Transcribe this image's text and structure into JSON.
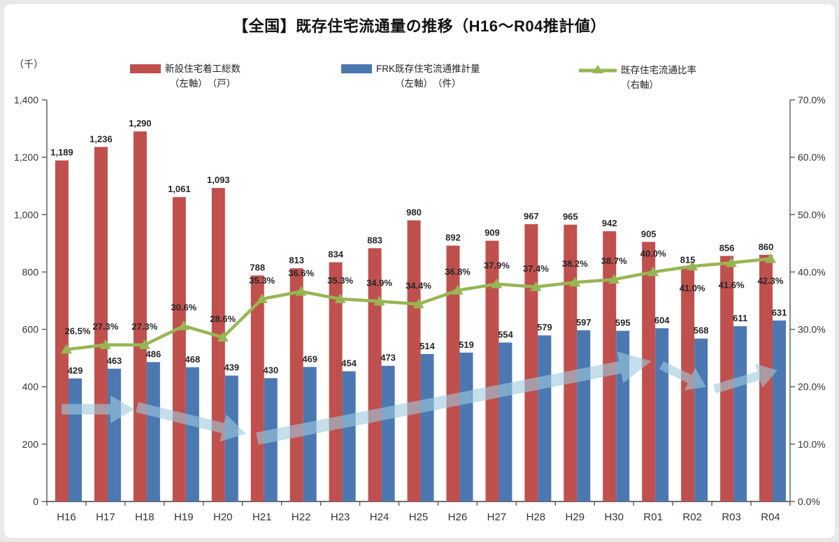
{
  "title": "【全国】既存住宅流通量の推移（H16～R04推計値）",
  "left_axis_unit": "（千）",
  "legend": [
    {
      "label": "新設住宅着工総数",
      "sub": "（左軸）　（戸）",
      "color": "#C0504D",
      "kind": "bar"
    },
    {
      "label": "FRK既存住宅流通推計量",
      "sub": "（左軸）　（件）",
      "color": "#4B78B1",
      "kind": "bar"
    },
    {
      "label": "既存住宅流通比率",
      "sub": "（右軸）",
      "color": "#97B653",
      "kind": "line"
    }
  ],
  "chart_data": {
    "type": "combo (clustered bars + line)",
    "title": "【全国】既存住宅流通量の推移（H16～R04推計値）",
    "categories": [
      "H16",
      "H17",
      "H18",
      "H19",
      "H20",
      "H21",
      "H22",
      "H23",
      "H24",
      "H25",
      "H26",
      "H27",
      "H28",
      "H29",
      "H30",
      "R01",
      "R02",
      "R03",
      "R04"
    ],
    "series": [
      {
        "name": "新設住宅着工総数（左軸）（戸）",
        "type": "bar",
        "axis": "left",
        "color": "#C0504D",
        "values": [
          1189,
          1236,
          1290,
          1061,
          1093,
          788,
          813,
          834,
          883,
          980,
          892,
          909,
          967,
          965,
          942,
          905,
          815,
          856,
          860
        ]
      },
      {
        "name": "FRK既存住宅流通推計量（左軸）（件）",
        "type": "bar",
        "axis": "left",
        "color": "#4B78B1",
        "values": [
          429,
          463,
          486,
          468,
          439,
          430,
          469,
          454,
          473,
          514,
          519,
          554,
          579,
          597,
          595,
          604,
          568,
          611,
          631
        ]
      },
      {
        "name": "既存住宅流通比率（右軸）",
        "type": "line",
        "axis": "right",
        "color": "#97B653",
        "values": [
          26.5,
          27.3,
          27.3,
          30.6,
          28.6,
          35.3,
          36.6,
          35.3,
          34.9,
          34.4,
          36.8,
          37.9,
          37.4,
          38.2,
          38.7,
          40.0,
          41.0,
          41.6,
          42.3
        ],
        "value_labels": [
          "26.5%",
          "27.3%",
          "27.3%",
          "30.6%",
          "28.6%",
          "35.3%",
          "36.6%",
          "35.3%",
          "34.9%",
          "34.4%",
          "36.8%",
          "37.9%",
          "37.4%",
          "38.2%",
          "38.7%",
          "40.0%",
          "41.0%",
          "41.6%",
          "42.3%"
        ],
        "labels_below_indices": [
          16,
          17,
          18
        ]
      }
    ],
    "left_axis": {
      "unit": "（千）",
      "min": 0,
      "max": 1400,
      "step": 200,
      "tick_labels": [
        "0",
        "200",
        "400",
        "600",
        "800",
        "1,000",
        "1,200",
        "1,400"
      ]
    },
    "right_axis": {
      "min": 0,
      "max": 70,
      "step": 10,
      "tick_labels": [
        "0.0%",
        "10.0%",
        "20.0%",
        "30.0%",
        "40.0%",
        "50.0%",
        "60.0%",
        "70.0%"
      ]
    },
    "grid": false,
    "legend_position": "top",
    "annotations": {
      "arrow_color": "#9CCADE",
      "arrow_opacity": 0.6,
      "arrows": [
        {
          "from": [
            88,
            586
          ],
          "to": [
            192,
            586
          ],
          "shaft": 15,
          "head_w": 40,
          "head_l": 34
        },
        {
          "from": [
            196,
            583
          ],
          "to": [
            352,
            621
          ],
          "shaft": 15,
          "head_w": 40,
          "head_l": 34
        },
        {
          "from": [
            368,
            628
          ],
          "to": [
            932,
            517
          ],
          "shaft": 18,
          "head_w": 46,
          "head_l": 46
        },
        {
          "from": [
            946,
            523
          ],
          "to": [
            1010,
            554
          ],
          "shaft": 13,
          "head_w": 36,
          "head_l": 26
        },
        {
          "from": [
            1022,
            557
          ],
          "to": [
            1112,
            530
          ],
          "shaft": 13,
          "head_w": 36,
          "head_l": 28
        }
      ]
    }
  }
}
